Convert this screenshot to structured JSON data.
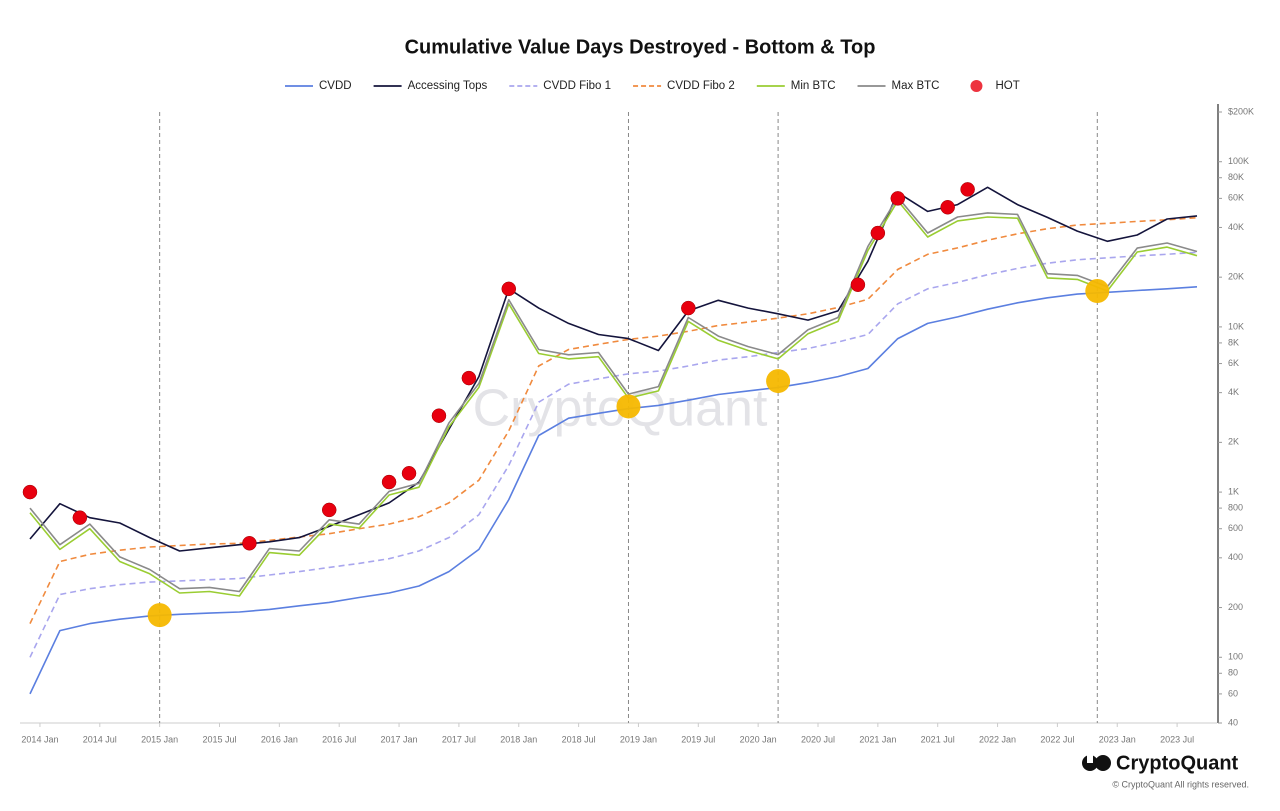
{
  "chart_data": {
    "type": "line",
    "title": "Cumulative Value Days Destroyed - Bottom & Top",
    "log_y": true,
    "grid": false,
    "legend": "top",
    "xlim": [
      "2013-11",
      "2023-11"
    ],
    "xticks": [
      {
        "value": "2014-01",
        "label": "2014 Jan"
      },
      {
        "value": "2014-07",
        "label": "2014 Jul"
      },
      {
        "value": "2015-01",
        "label": "2015 Jan"
      },
      {
        "value": "2015-07",
        "label": "2015 Jul"
      },
      {
        "value": "2016-01",
        "label": "2016 Jan"
      },
      {
        "value": "2016-07",
        "label": "2016 Jul"
      },
      {
        "value": "2017-01",
        "label": "2017 Jan"
      },
      {
        "value": "2017-07",
        "label": "2017 Jul"
      },
      {
        "value": "2018-01",
        "label": "2018 Jan"
      },
      {
        "value": "2018-07",
        "label": "2018 Jul"
      },
      {
        "value": "2019-01",
        "label": "2019 Jan"
      },
      {
        "value": "2019-07",
        "label": "2019 Jul"
      },
      {
        "value": "2020-01",
        "label": "2020 Jan"
      },
      {
        "value": "2020-07",
        "label": "2020 Jul"
      },
      {
        "value": "2021-01",
        "label": "2021 Jan"
      },
      {
        "value": "2021-07",
        "label": "2021 Jul"
      },
      {
        "value": "2022-01",
        "label": "2022 Jan"
      },
      {
        "value": "2022-07",
        "label": "2022 Jul"
      },
      {
        "value": "2023-01",
        "label": "2023 Jan"
      },
      {
        "value": "2023-07",
        "label": "2023 Jul"
      }
    ],
    "ylim": [
      40,
      200000
    ],
    "yticks": [
      40,
      60,
      80,
      100,
      200,
      400,
      600,
      800,
      {
        "value": 1000,
        "label": "1K"
      },
      {
        "value": 2000,
        "label": "2K"
      },
      {
        "value": 4000,
        "label": "4K"
      },
      {
        "value": 6000,
        "label": "6K"
      },
      {
        "value": 8000,
        "label": "8K"
      },
      {
        "value": 10000,
        "label": "10K"
      },
      {
        "value": 20000,
        "label": "20K"
      },
      {
        "value": 40000,
        "label": "40K"
      },
      {
        "value": 60000,
        "label": "60K"
      },
      {
        "value": 80000,
        "label": "80K"
      },
      {
        "value": 100000,
        "label": "100K"
      },
      {
        "value": 200000,
        "label": "$200K"
      }
    ],
    "x": [
      "2013-12",
      "2014-03",
      "2014-06",
      "2014-09",
      "2014-12",
      "2015-03",
      "2015-06",
      "2015-09",
      "2015-12",
      "2016-03",
      "2016-06",
      "2016-09",
      "2016-12",
      "2017-03",
      "2017-06",
      "2017-09",
      "2017-12",
      "2018-03",
      "2018-06",
      "2018-09",
      "2018-12",
      "2019-03",
      "2019-06",
      "2019-09",
      "2019-12",
      "2020-03",
      "2020-06",
      "2020-09",
      "2020-12",
      "2021-03",
      "2021-06",
      "2021-09",
      "2021-12",
      "2022-03",
      "2022-06",
      "2022-09",
      "2022-12",
      "2023-03",
      "2023-06",
      "2023-09"
    ],
    "series": [
      {
        "name": "CVDD",
        "color": "#5b7fe0",
        "dashed": false,
        "values": [
          60,
          145,
          160,
          170,
          178,
          182,
          185,
          188,
          195,
          205,
          215,
          230,
          245,
          270,
          330,
          450,
          900,
          2200,
          2800,
          3000,
          3200,
          3350,
          3600,
          3900,
          4100,
          4300,
          4600,
          5000,
          5600,
          8500,
          10500,
          11500,
          12800,
          14000,
          15000,
          15800,
          16200,
          16600,
          17000,
          17500
        ]
      },
      {
        "name": "Accessing Tops",
        "color": "#14143c",
        "dashed": false,
        "values": [
          520,
          850,
          700,
          650,
          530,
          440,
          460,
          480,
          500,
          530,
          620,
          730,
          860,
          1150,
          2400,
          5000,
          17000,
          13000,
          10500,
          9000,
          8500,
          7200,
          12500,
          14500,
          13000,
          12000,
          11000,
          12500,
          25000,
          65000,
          50000,
          55000,
          70000,
          55000,
          46000,
          38000,
          33000,
          36000,
          45000,
          47000
        ]
      },
      {
        "name": "CVDD Fibo 1",
        "color": "#a9a6ee",
        "dashed": true,
        "values": [
          100,
          240,
          260,
          275,
          285,
          290,
          295,
          300,
          315,
          330,
          350,
          370,
          395,
          440,
          530,
          730,
          1450,
          3500,
          4500,
          4850,
          5200,
          5400,
          5800,
          6300,
          6600,
          7000,
          7400,
          8100,
          9000,
          13800,
          17000,
          18600,
          20700,
          22600,
          24300,
          25500,
          26200,
          26900,
          27500,
          28300
        ]
      },
      {
        "name": "CVDD Fibo 2",
        "color": "#f08a3e",
        "dashed": true,
        "values": [
          160,
          380,
          420,
          445,
          465,
          475,
          485,
          490,
          510,
          535,
          560,
          600,
          640,
          710,
          860,
          1180,
          2350,
          5800,
          7300,
          7850,
          8400,
          8800,
          9400,
          10200,
          10700,
          11300,
          12000,
          13100,
          14700,
          22300,
          27500,
          30100,
          33500,
          36600,
          39300,
          41400,
          42400,
          43500,
          44500,
          45800
        ]
      },
      {
        "name": "Min BTC",
        "color": "#9acd32",
        "dashed": false,
        "values": [
          750,
          450,
          600,
          380,
          320,
          245,
          250,
          235,
          430,
          415,
          640,
          605,
          960,
          1070,
          2480,
          4300,
          13800,
          6900,
          6400,
          6600,
          3700,
          4100,
          10800,
          8300,
          7200,
          6400,
          9100,
          10800,
          29000,
          58000,
          35000,
          43800,
          46300,
          45500,
          19800,
          19400,
          16500,
          28400,
          30400,
          27000
        ]
      },
      {
        "name": "Max BTC",
        "color": "#8a8a8a",
        "dashed": false,
        "values": [
          800,
          480,
          640,
          405,
          340,
          260,
          265,
          250,
          455,
          440,
          680,
          640,
          1010,
          1130,
          2620,
          4550,
          14600,
          7300,
          6780,
          7000,
          3920,
          4350,
          11400,
          8800,
          7600,
          6800,
          9600,
          11400,
          30700,
          61000,
          37000,
          46300,
          49000,
          48000,
          21000,
          20500,
          17500,
          30000,
          32200,
          28600
        ]
      }
    ],
    "hot": {
      "name": "HOT",
      "color": "#e8000f",
      "x": [
        "2013-12",
        "2014-05",
        "2015-10",
        "2016-06",
        "2016-12",
        "2017-02",
        "2017-05",
        "2017-08",
        "2017-12",
        "2019-06",
        "2020-11",
        "2021-01",
        "2021-03",
        "2021-08",
        "2021-10"
      ],
      "values": [
        1000,
        700,
        490,
        780,
        1150,
        1300,
        2900,
        4900,
        17000,
        13000,
        18000,
        37000,
        60000,
        53000,
        68000
      ]
    },
    "bottoms": {
      "color": "#f5b800",
      "x": [
        "2015-01",
        "2018-12",
        "2020-03",
        "2022-11"
      ],
      "values": [
        180,
        3300,
        4700,
        16500
      ]
    },
    "watermark": "CryptoQuant",
    "brand": "CryptoQuant",
    "copyright": "© CryptoQuant All rights reserved."
  }
}
